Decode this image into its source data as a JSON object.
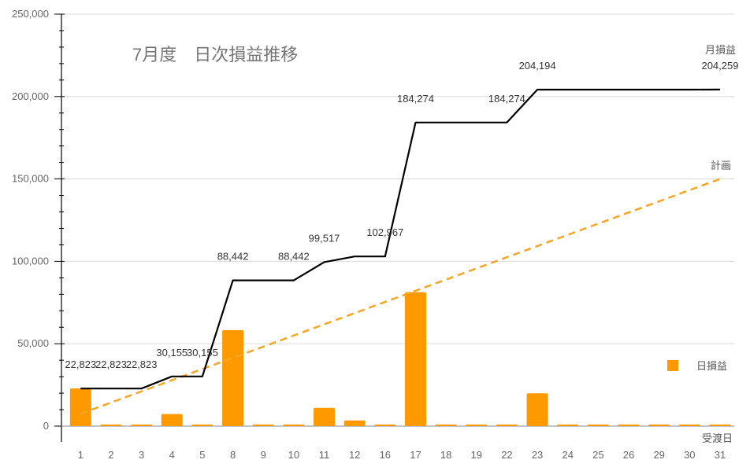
{
  "chart_data": {
    "type": "bar",
    "title": "7月度　日次損益推移",
    "xlabel": "受渡日",
    "ylabel": "",
    "ylim": [
      0,
      250000
    ],
    "yticks": [
      0,
      50000,
      100000,
      150000,
      200000,
      250000
    ],
    "ytick_labels": [
      "0",
      "50,000",
      "100,000",
      "150,000",
      "200,000",
      "250,000"
    ],
    "grid": true,
    "categories": [
      "1",
      "2",
      "3",
      "4",
      "5",
      "8",
      "9",
      "10",
      "11",
      "12",
      "16",
      "17",
      "18",
      "19",
      "22",
      "23",
      "24",
      "25",
      "26",
      "29",
      "30",
      "31"
    ],
    "series": [
      {
        "name": "日損益",
        "kind": "bar",
        "color": "#ff9900",
        "values": [
          22823,
          0,
          0,
          7332,
          0,
          58287,
          0,
          0,
          11075,
          3450,
          0,
          81307,
          0,
          0,
          0,
          19920,
          0,
          0,
          0,
          0,
          0,
          65
        ]
      },
      {
        "name": "月損益",
        "kind": "step-line",
        "color": "#000000",
        "values": [
          22823,
          22823,
          22823,
          30155,
          30155,
          88442,
          88442,
          88442,
          99517,
          102967,
          102967,
          184274,
          184274,
          184274,
          184274,
          204194,
          204194,
          204194,
          204194,
          204194,
          204194,
          204259
        ],
        "data_labels": [
          "22,823",
          "22,823",
          "22,823",
          "30,155",
          "30,155",
          "88,442",
          "",
          "88,442",
          "99,517",
          "",
          "102,967",
          "184,274",
          "",
          "",
          "184,274",
          "204,194",
          "",
          "",
          "",
          "",
          "",
          "204,259"
        ]
      },
      {
        "name": "計画",
        "kind": "dashed-line",
        "color": "#f5a623",
        "values": [
          7500,
          14286,
          21071,
          27857,
          34643,
          41429,
          48214,
          55000,
          61786,
          68571,
          75357,
          82143,
          88929,
          95714,
          102500,
          109286,
          116071,
          122857,
          129643,
          136429,
          143214,
          150000
        ]
      }
    ],
    "legend": {
      "position": "right",
      "entries": [
        "日損益"
      ]
    }
  }
}
